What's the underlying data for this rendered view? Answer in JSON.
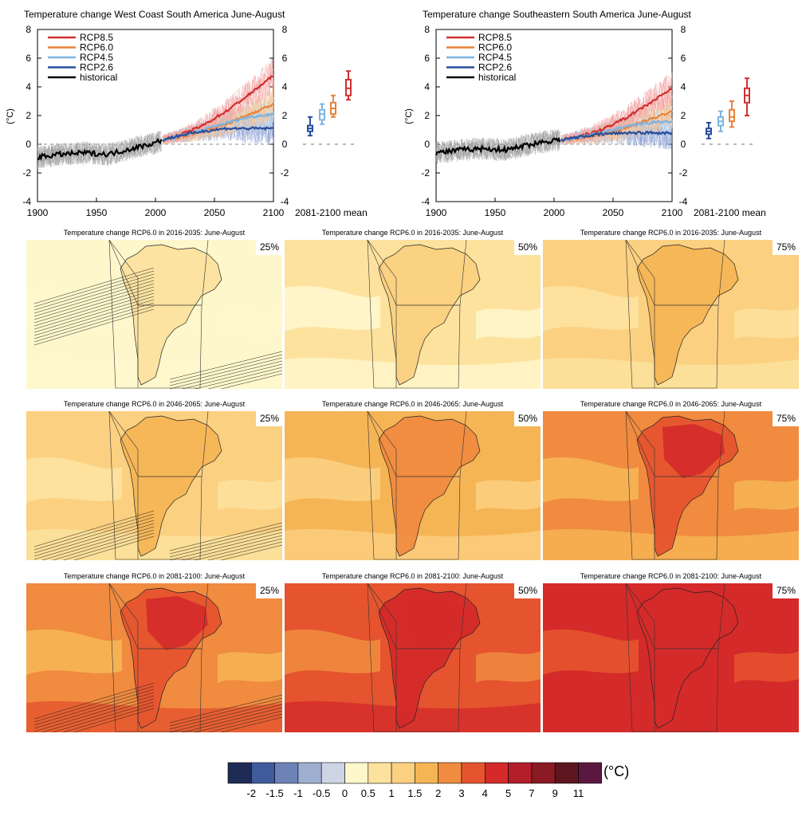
{
  "chart_data": [
    {
      "type": "line",
      "title": "Temperature change West Coast South America June-August",
      "ylabel": "(°C)",
      "xlim": [
        1900,
        2100
      ],
      "ylim": [
        -4,
        8
      ],
      "x_ticks": [
        "1900",
        "1950",
        "2000",
        "2050",
        "2100"
      ],
      "y_ticks": [
        "8",
        "6",
        "4",
        "2",
        "0",
        "-2",
        "-4"
      ],
      "box_label": "2081-2100 mean",
      "legend": {
        "position": "top-left"
      },
      "series": [
        {
          "name": "RCP8.5",
          "color": "#d03030",
          "x": [
            2006,
            2020,
            2040,
            2060,
            2080,
            2100
          ],
          "values": [
            0.3,
            0.6,
            1.3,
            2.3,
            3.5,
            4.8
          ]
        },
        {
          "name": "RCP6.0",
          "color": "#e8833a",
          "x": [
            2006,
            2020,
            2040,
            2060,
            2080,
            2100
          ],
          "values": [
            0.3,
            0.5,
            0.9,
            1.4,
            2.1,
            2.8
          ]
        },
        {
          "name": "RCP4.5",
          "color": "#7fb4e0",
          "x": [
            2006,
            2020,
            2040,
            2060,
            2080,
            2100
          ],
          "values": [
            0.3,
            0.55,
            1.0,
            1.5,
            1.9,
            2.1
          ]
        },
        {
          "name": "RCP2.6",
          "color": "#2a4d9a",
          "x": [
            2006,
            2020,
            2040,
            2060,
            2080,
            2100
          ],
          "values": [
            0.3,
            0.6,
            0.9,
            1.1,
            1.1,
            1.1
          ]
        },
        {
          "name": "historical",
          "color": "#000000",
          "x": [
            1900,
            1920,
            1940,
            1960,
            1980,
            2000,
            2005
          ],
          "values": [
            -0.9,
            -0.7,
            -0.6,
            -0.7,
            -0.3,
            0.1,
            0.3
          ]
        }
      ],
      "boxes": [
        {
          "series": "RCP2.6",
          "low": 0.6,
          "q1": 0.9,
          "median": 1.1,
          "q3": 1.3,
          "high": 1.9
        },
        {
          "series": "RCP4.5",
          "low": 1.4,
          "q1": 1.7,
          "median": 2.1,
          "q3": 2.4,
          "high": 2.8
        },
        {
          "series": "RCP6.0",
          "low": 1.9,
          "q1": 2.1,
          "median": 2.5,
          "q3": 2.9,
          "high": 3.4
        },
        {
          "series": "RCP8.5",
          "low": 3.1,
          "q1": 3.4,
          "median": 3.9,
          "q3": 4.5,
          "high": 5.1
        }
      ]
    },
    {
      "type": "line",
      "title": "Temperature change Southeastern South America June-August",
      "ylabel": "(°C)",
      "xlim": [
        1900,
        2100
      ],
      "ylim": [
        -4,
        8
      ],
      "x_ticks": [
        "1900",
        "1950",
        "2000",
        "2050",
        "2100"
      ],
      "y_ticks": [
        "8",
        "6",
        "4",
        "2",
        "0",
        "-2",
        "-4"
      ],
      "box_label": "2081-2100 mean",
      "legend": {
        "position": "top-left"
      },
      "series": [
        {
          "name": "RCP8.5",
          "color": "#d03030",
          "x": [
            2006,
            2020,
            2040,
            2060,
            2080,
            2100
          ],
          "values": [
            0.3,
            0.5,
            1.0,
            1.8,
            2.8,
            3.9
          ]
        },
        {
          "name": "RCP6.0",
          "color": "#e8833a",
          "x": [
            2006,
            2020,
            2040,
            2060,
            2080,
            2100
          ],
          "values": [
            0.3,
            0.4,
            0.7,
            1.1,
            1.7,
            2.3
          ]
        },
        {
          "name": "RCP4.5",
          "color": "#7fb4e0",
          "x": [
            2006,
            2020,
            2040,
            2060,
            2080,
            2100
          ],
          "values": [
            0.3,
            0.45,
            0.8,
            1.2,
            1.5,
            1.6
          ]
        },
        {
          "name": "RCP2.6",
          "color": "#2a4d9a",
          "x": [
            2006,
            2020,
            2040,
            2060,
            2080,
            2100
          ],
          "values": [
            0.3,
            0.5,
            0.7,
            0.8,
            0.8,
            0.8
          ]
        },
        {
          "name": "historical",
          "color": "#000000",
          "x": [
            1900,
            1920,
            1940,
            1960,
            1980,
            2000,
            2005
          ],
          "values": [
            -0.6,
            -0.4,
            -0.3,
            -0.4,
            0.0,
            0.3,
            0.3
          ]
        }
      ],
      "boxes": [
        {
          "series": "RCP2.6",
          "low": 0.4,
          "q1": 0.7,
          "median": 0.9,
          "q3": 1.1,
          "high": 1.5
        },
        {
          "series": "RCP4.5",
          "low": 0.9,
          "q1": 1.3,
          "median": 1.6,
          "q3": 1.9,
          "high": 2.3
        },
        {
          "series": "RCP6.0",
          "low": 1.2,
          "q1": 1.6,
          "median": 1.9,
          "q3": 2.4,
          "high": 3.0
        },
        {
          "series": "RCP8.5",
          "low": 2.0,
          "q1": 2.9,
          "median": 3.4,
          "q3": 3.9,
          "high": 4.6
        }
      ]
    },
    {
      "type": "heatmap",
      "maps": [
        {
          "title": "Temperature change RCP6.0 in 2016-2035: June-August",
          "percentile": "25%",
          "level": 0
        },
        {
          "title": "Temperature change RCP6.0 in 2016-2035: June-August",
          "percentile": "50%",
          "level": 1
        },
        {
          "title": "Temperature change RCP6.0 in 2016-2035: June-August",
          "percentile": "75%",
          "level": 2
        },
        {
          "title": "Temperature change RCP6.0 in 2046-2065: June-August",
          "percentile": "25%",
          "level": 2
        },
        {
          "title": "Temperature change RCP6.0 in 2046-2065: June-August",
          "percentile": "50%",
          "level": 3
        },
        {
          "title": "Temperature change RCP6.0 in 2046-2065: June-August",
          "percentile": "75%",
          "level": 4
        },
        {
          "title": "Temperature change RCP6.0 in 2081-2100: June-August",
          "percentile": "25%",
          "level": 4
        },
        {
          "title": "Temperature change RCP6.0 in 2081-2100: June-August",
          "percentile": "50%",
          "level": 5
        },
        {
          "title": "Temperature change RCP6.0 in 2081-2100: June-August",
          "percentile": "75%",
          "level": 6
        }
      ],
      "colorbar": {
        "unit": "(°C)",
        "colors": [
          "#1e2b55",
          "#3f5b9c",
          "#6d82b6",
          "#9eaed0",
          "#cdd5e4",
          "#fff7cc",
          "#fde29e",
          "#fbd081",
          "#f6b555",
          "#f08b3f",
          "#e5542e",
          "#d42a2a",
          "#b31e2b",
          "#8a1a24",
          "#5e1620",
          "#5a1840"
        ],
        "labels": [
          "-2",
          "-1.5",
          "-1",
          "-0.5",
          "0",
          "0.5",
          "1",
          "1.5",
          "2",
          "3",
          "4",
          "5",
          "7",
          "9",
          "11"
        ]
      }
    }
  ]
}
